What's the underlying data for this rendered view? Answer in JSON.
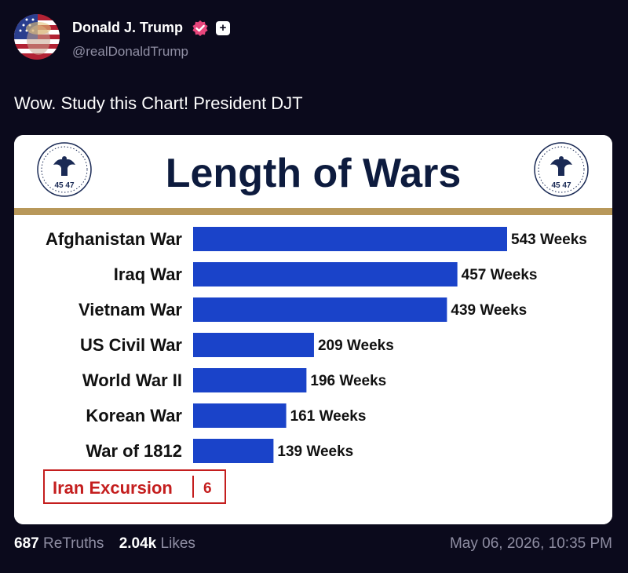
{
  "author": {
    "name": "Donald J. Trump",
    "handle": "@realDonaldTrump",
    "avatar_icon": "profile-photo",
    "verified_icon": "verified-badge-icon",
    "plus_icon": "plus-badge-icon"
  },
  "post": {
    "text": "Wow. Study this Chart! President DJT"
  },
  "chart_data": {
    "type": "bar",
    "orientation": "horizontal",
    "title": "Length of Wars",
    "seal_text_left": "45 47",
    "seal_text_right": "45 47",
    "categories": [
      "Afghanistan War",
      "Iraq War",
      "Vietnam War",
      "US Civil War",
      "World War II",
      "Korean War",
      "War of 1812"
    ],
    "values": [
      543,
      457,
      439,
      209,
      196,
      161,
      139
    ],
    "value_labels": [
      "543 Weeks",
      "457 Weeks",
      "439 Weeks",
      "209 Weeks",
      "196 Weeks",
      "161 Weeks",
      "139 Weeks"
    ],
    "bar_color": "#1a43c9",
    "highlight": {
      "label": "Iran Excursion",
      "value": "6",
      "color": "#c41e1e"
    },
    "gold_rule_color": "#b8985a",
    "title_color": "#0d1b3e"
  },
  "footer": {
    "retruths_count": "687",
    "retruths_label": "ReTruths",
    "likes_count": "2.04k",
    "likes_label": "Likes",
    "timestamp": "May 06, 2026, 10:35 PM"
  },
  "colors": {
    "background": "#0b0a1c",
    "text_primary": "#ffffff",
    "text_secondary": "#8f8ea3",
    "verified_badge": "#e8467c"
  }
}
